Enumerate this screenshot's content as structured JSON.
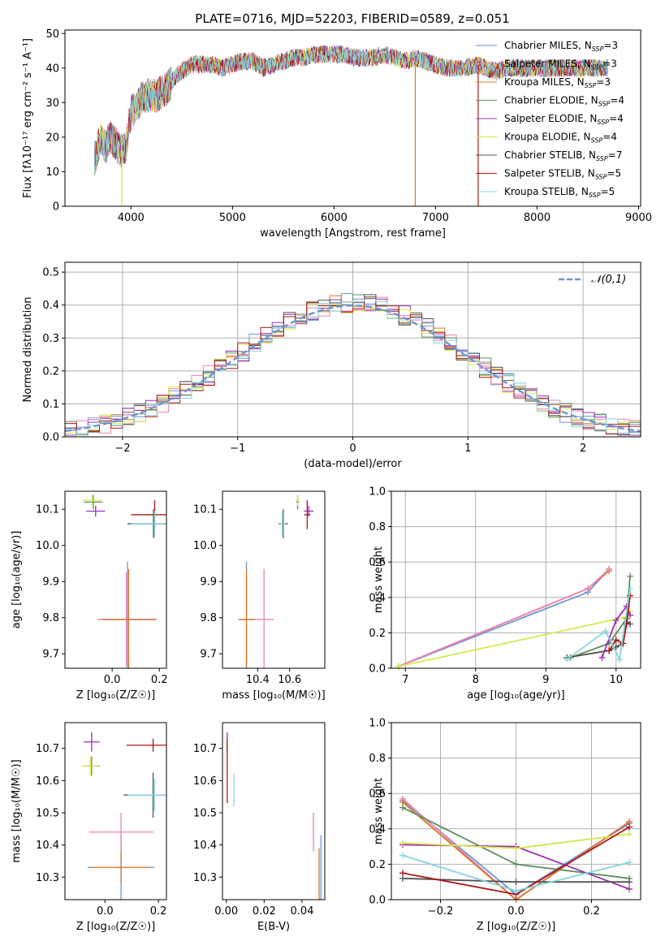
{
  "colors": {
    "chabrier_miles": "#6f93d6",
    "salpeter_miles": "#e884b4",
    "kroupa_miles": "#d9772d",
    "chabrier_elodie": "#5e8c5a",
    "salpeter_elodie": "#9a2fb0",
    "kroupa_elodie": "#d4e84f",
    "chabrier_stelib": "#545454",
    "salpeter_stelib": "#aa1a1a",
    "kroupa_stelib": "#85d3de",
    "normal": "#6f93d6"
  },
  "chart_data": [
    {
      "id": "spectrum",
      "type": "line",
      "title": "PLATE=0716, MJD=52203, FIBERID=0589, z=0.051",
      "xlabel": "wavelength [Angstrom, rest frame]",
      "ylabel": "Flux [fλ10⁻¹⁷ erg cm⁻² s⁻¹ A⁻¹]",
      "xlim": [
        3350,
        9020
      ],
      "ylim": [
        0,
        51
      ],
      "xticks": [
        "4000",
        "5000",
        "6000",
        "7000",
        "8000",
        "9000"
      ],
      "yticks": [
        "0",
        "10",
        "20",
        "30",
        "40",
        "50"
      ],
      "legend_position": "top-right",
      "series": [
        {
          "name": "Chabrier MILES, N_SSP=3"
        },
        {
          "name": "Salpeter MILES, N_SSP=3"
        },
        {
          "name": "Kroupa MILES, N_SSP=3"
        },
        {
          "name": "Chabrier ELODIE, N_SSP=4"
        },
        {
          "name": "Salpeter ELODIE, N_SSP=4"
        },
        {
          "name": "Kroupa ELODIE, N_SSP=4"
        },
        {
          "name": "Chabrier STELIB, N_SSP=7"
        },
        {
          "name": "Salpeter STELIB, N_SSP=5"
        },
        {
          "name": "Kroupa STELIB, N_SSP=5"
        }
      ],
      "spectrum_envelope": {
        "wavelength": [
          3650,
          3700,
          3750,
          3800,
          3850,
          3900,
          3950,
          4000,
          4050,
          4100,
          4150,
          4200,
          4250,
          4300,
          4350,
          4400,
          4450,
          4500,
          4600,
          4700,
          4800,
          4900,
          5000,
          5100,
          5200,
          5300,
          5400,
          5500,
          5600,
          5700,
          5800,
          5900,
          6000,
          6100,
          6200,
          6300,
          6400,
          6500,
          6600,
          6700,
          6800,
          6900,
          7000,
          7100,
          7200,
          7300,
          7400,
          7500,
          7600,
          7700,
          7800,
          7900,
          8000,
          8100,
          8200,
          8300,
          8400,
          8500,
          8600,
          8700
        ],
        "flux": [
          14,
          20,
          17,
          20,
          18,
          16,
          17,
          27,
          29,
          31,
          32,
          32,
          32,
          33,
          34,
          36,
          38,
          39,
          41,
          41,
          41,
          40,
          41,
          42,
          42,
          40,
          41,
          42,
          43,
          43,
          44,
          44,
          44,
          44,
          43,
          43,
          43,
          44,
          43,
          42,
          43,
          42,
          41,
          40,
          40,
          40,
          41,
          40,
          39,
          40,
          40,
          40,
          40,
          40,
          40,
          40,
          40,
          40,
          40,
          40
        ]
      },
      "dips": [
        {
          "wavelength": 3910,
          "flux": 0,
          "series": "Kroupa ELODIE, N_SSP=4"
        },
        {
          "wavelength": 6800,
          "flux": 0,
          "series": "Kroupa MILES, N_SSP=3"
        },
        {
          "wavelength": 7420,
          "flux": 0,
          "series": "Salpeter STELIB, N_SSP=5"
        }
      ]
    },
    {
      "id": "residuals",
      "type": "histogram",
      "xlabel": "(data-model)/error",
      "ylabel": "Normed distribution",
      "xlim": [
        -2.5,
        2.5
      ],
      "ylim": [
        0,
        0.53
      ],
      "grid": true,
      "xticks": [
        "−2",
        "−1",
        "0",
        "1",
        "2"
      ],
      "yticks": [
        "0.0",
        "0.1",
        "0.2",
        "0.3",
        "0.4",
        "0.5"
      ],
      "bin_width": 0.1,
      "reference_curve": {
        "name": "𝒩(0,1)",
        "style": "dashed",
        "mean": 0,
        "sigma": 1
      },
      "legend_position": "top-right"
    },
    {
      "id": "age_vs_Z",
      "type": "errorbar",
      "xlabel": "Z [log₁₀(Z/Z☉)]",
      "ylabel": "age  [log₁₀(age/yr)]",
      "xlim": [
        -0.2,
        0.23
      ],
      "ylim": [
        9.66,
        10.15
      ],
      "xticks": [
        {
          "v": 0.0,
          "t": "0.0"
        },
        {
          "v": 0.2,
          "t": "0.2"
        }
      ],
      "yticks": [
        {
          "v": 9.7,
          "t": "9.7"
        },
        {
          "v": 9.8,
          "t": "9.8"
        },
        {
          "v": 9.9,
          "t": "9.9"
        },
        {
          "v": 10.0,
          "t": "10.0"
        },
        {
          "v": 10.1,
          "t": "10.1"
        }
      ],
      "points": [
        {
          "series": "chabrier_miles",
          "x": 0.065,
          "xerr": 0.125,
          "y": 9.795,
          "yerr": 0.16
        },
        {
          "series": "salpeter_miles",
          "x": 0.06,
          "xerr": 0.12,
          "y": 9.795,
          "yerr": 0.13
        },
        {
          "series": "kroupa_miles",
          "x": 0.07,
          "xerr": 0.115,
          "y": 9.795,
          "yerr": 0.14
        },
        {
          "series": "chabrier_elodie",
          "x": -0.08,
          "xerr": 0.04,
          "y": 10.12,
          "yerr": 0.02
        },
        {
          "series": "salpeter_elodie",
          "x": -0.07,
          "xerr": 0.04,
          "y": 10.095,
          "yerr": 0.015
        },
        {
          "series": "kroupa_elodie",
          "x": -0.085,
          "xerr": 0.04,
          "y": 10.125,
          "yerr": 0.015
        },
        {
          "series": "chabrier_stelib",
          "x": 0.175,
          "xerr": 0.11,
          "y": 10.06,
          "yerr": 0.04
        },
        {
          "series": "salpeter_stelib",
          "x": 0.18,
          "xerr": 0.1,
          "y": 10.085,
          "yerr": 0.04
        },
        {
          "series": "kroupa_stelib",
          "x": 0.18,
          "xerr": 0.1,
          "y": 10.06,
          "yerr": 0.035
        }
      ]
    },
    {
      "id": "age_vs_mass",
      "type": "errorbar",
      "xlabel": "mass [log₁₀(M/M☉)]",
      "ylabel": "",
      "xlim": [
        10.18,
        10.82
      ],
      "ylim": [
        9.66,
        10.15
      ],
      "xticks": [
        {
          "v": 10.4,
          "t": "10.4"
        },
        {
          "v": 10.6,
          "t": "10.6"
        }
      ],
      "yticks": [
        {
          "v": 9.7,
          "t": "9.7"
        },
        {
          "v": 9.8,
          "t": "9.8"
        },
        {
          "v": 9.9,
          "t": "9.9"
        },
        {
          "v": 10.0,
          "t": "10.0"
        },
        {
          "v": 10.1,
          "t": "10.1"
        }
      ],
      "points": [
        {
          "series": "chabrier_miles",
          "x": 10.33,
          "xerr": 0.05,
          "y": 9.795,
          "yerr": 0.16
        },
        {
          "series": "salpeter_miles",
          "x": 10.44,
          "xerr": 0.06,
          "y": 9.795,
          "yerr": 0.14
        },
        {
          "series": "kroupa_miles",
          "x": 10.33,
          "xerr": 0.05,
          "y": 9.795,
          "yerr": 0.14
        },
        {
          "series": "chabrier_elodie",
          "x": 10.65,
          "xerr": 0.01,
          "y": 10.12,
          "yerr": 0.02
        },
        {
          "series": "salpeter_elodie",
          "x": 10.72,
          "xerr": 0.03,
          "y": 10.095,
          "yerr": 0.015
        },
        {
          "series": "kroupa_elodie",
          "x": 10.65,
          "xerr": 0.01,
          "y": 10.125,
          "yerr": 0.015
        },
        {
          "series": "chabrier_stelib",
          "x": 10.56,
          "xerr": 0.03,
          "y": 10.06,
          "yerr": 0.04
        },
        {
          "series": "salpeter_stelib",
          "x": 10.71,
          "xerr": 0.02,
          "y": 10.085,
          "yerr": 0.04
        },
        {
          "series": "kroupa_stelib",
          "x": 10.555,
          "xerr": 0.02,
          "y": 10.06,
          "yerr": 0.035
        }
      ]
    },
    {
      "id": "massweight_vs_age",
      "type": "line",
      "xlabel": "age  [log₁₀(age/yr)]",
      "ylabel": "mass weight",
      "xlim": [
        6.8,
        10.35
      ],
      "ylim": [
        0,
        1
      ],
      "grid": true,
      "xticks": [
        {
          "v": 7,
          "t": "7"
        },
        {
          "v": 8,
          "t": "8"
        },
        {
          "v": 9,
          "t": "9"
        },
        {
          "v": 10,
          "t": "10"
        }
      ],
      "yticks": [
        {
          "v": 0,
          "t": "0.0"
        },
        {
          "v": 0.2,
          "t": "0.2"
        },
        {
          "v": 0.4,
          "t": "0.4"
        },
        {
          "v": 0.6,
          "t": "0.6"
        },
        {
          "v": 0.8,
          "t": "0.8"
        },
        {
          "v": 1.0,
          "t": "1.0"
        }
      ],
      "series": [
        {
          "key": "chabrier_miles",
          "x": [
            6.9,
            9.6,
            9.9
          ],
          "y": [
            0.01,
            0.43,
            0.56
          ]
        },
        {
          "key": "kroupa_miles",
          "x": [
            6.9,
            9.6,
            9.9
          ],
          "y": [
            0.01,
            0.45,
            0.55
          ]
        },
        {
          "key": "salpeter_miles",
          "x": [
            6.9,
            9.6,
            9.9
          ],
          "y": [
            0.01,
            0.45,
            0.56
          ]
        },
        {
          "key": "kroupa_elodie",
          "x": [
            6.9,
            10.15,
            10.2
          ],
          "y": [
            0.01,
            0.29,
            0.32
          ]
        },
        {
          "key": "chabrier_elodie",
          "x": [
            9.35,
            9.9,
            10.15,
            10.2
          ],
          "y": [
            0.06,
            0.14,
            0.28,
            0.52
          ]
        },
        {
          "key": "salpeter_elodie",
          "x": [
            9.8,
            10.0,
            10.15,
            10.2
          ],
          "y": [
            0.06,
            0.27,
            0.35,
            0.3
          ]
        },
        {
          "key": "chabrier_stelib",
          "x": [
            9.3,
            9.9,
            10.0,
            10.1,
            10.15,
            10.2
          ],
          "y": [
            0.06,
            0.1,
            0.12,
            0.14,
            0.26,
            0.25
          ]
        },
        {
          "key": "salpeter_stelib",
          "x": [
            9.9,
            10.0,
            10.1,
            10.15,
            10.2
          ],
          "y": [
            0.1,
            0.16,
            0.14,
            0.25,
            0.41
          ]
        },
        {
          "key": "kroupa_stelib",
          "x": [
            9.3,
            9.85,
            10.05,
            10.2
          ],
          "y": [
            0.05,
            0.21,
            0.05,
            0.45
          ]
        }
      ]
    },
    {
      "id": "mass_vs_Z",
      "type": "errorbar",
      "xlabel": "Z [log₁₀(Z/Z☉)]",
      "ylabel": "mass [log₁₀(M/M☉)]",
      "xlim": [
        -0.15,
        0.23
      ],
      "ylim": [
        10.23,
        10.78
      ],
      "xticks": [
        {
          "v": 0.0,
          "t": "0.0"
        },
        {
          "v": 0.2,
          "t": "0.2"
        }
      ],
      "yticks": [
        {
          "v": 10.3,
          "t": "10.3"
        },
        {
          "v": 10.4,
          "t": "10.4"
        },
        {
          "v": 10.5,
          "t": "10.5"
        },
        {
          "v": 10.6,
          "t": "10.6"
        },
        {
          "v": 10.7,
          "t": "10.7"
        }
      ],
      "points": [
        {
          "series": "chabrier_miles",
          "x": 0.06,
          "xerr": 0.125,
          "y": 10.33,
          "yerr": 0.1
        },
        {
          "series": "salpeter_miles",
          "x": 0.06,
          "xerr": 0.12,
          "y": 10.44,
          "yerr": 0.06
        },
        {
          "series": "kroupa_miles",
          "x": 0.06,
          "xerr": 0.11,
          "y": 10.33,
          "yerr": 0.05
        },
        {
          "series": "chabrier_elodie",
          "x": -0.05,
          "xerr": 0.03,
          "y": 10.645,
          "yerr": 0.03
        },
        {
          "series": "salpeter_elodie",
          "x": -0.05,
          "xerr": 0.03,
          "y": 10.72,
          "yerr": 0.03
        },
        {
          "series": "kroupa_elodie",
          "x": -0.055,
          "xerr": 0.03,
          "y": 10.645,
          "yerr": 0.03
        },
        {
          "series": "chabrier_stelib",
          "x": 0.18,
          "xerr": 0.11,
          "y": 10.555,
          "yerr": 0.07
        },
        {
          "series": "salpeter_stelib",
          "x": 0.18,
          "xerr": 0.1,
          "y": 10.71,
          "yerr": 0.02
        },
        {
          "series": "kroupa_stelib",
          "x": 0.185,
          "xerr": 0.1,
          "y": 10.555,
          "yerr": 0.05
        }
      ]
    },
    {
      "id": "mass_vs_ebv",
      "type": "errorbar",
      "xlabel": "E(B-V)",
      "ylabel": "",
      "xlim": [
        -0.002,
        0.052
      ],
      "ylim": [
        10.23,
        10.78
      ],
      "xticks": [
        {
          "v": 0.0,
          "t": "0.00"
        },
        {
          "v": 0.02,
          "t": "0.02"
        },
        {
          "v": 0.04,
          "t": "0.04"
        }
      ],
      "yticks": [
        {
          "v": 10.3,
          "t": "10.3"
        },
        {
          "v": 10.4,
          "t": "10.4"
        },
        {
          "v": 10.5,
          "t": "10.5"
        },
        {
          "v": 10.6,
          "t": "10.6"
        },
        {
          "v": 10.7,
          "t": "10.7"
        }
      ],
      "points": [
        {
          "series": "chabrier_miles",
          "x": 0.05,
          "xerr": 0,
          "y": 10.33,
          "yerr": 0.1
        },
        {
          "series": "salpeter_miles",
          "x": 0.046,
          "xerr": 0,
          "y": 10.44,
          "yerr": 0.06
        },
        {
          "series": "kroupa_miles",
          "x": 0.049,
          "xerr": 0,
          "y": 10.3,
          "yerr": 0.09
        },
        {
          "series": "salpeter_elodie",
          "x": 0.0005,
          "xerr": 0,
          "y": 10.72,
          "yerr": 0.03
        },
        {
          "series": "salpeter_stelib",
          "x": 0.0005,
          "xerr": 0,
          "y": 10.63,
          "yerr": 0.1
        },
        {
          "series": "kroupa_stelib",
          "x": 0.004,
          "xerr": 0,
          "y": 10.57,
          "yerr": 0.05
        }
      ]
    },
    {
      "id": "massweight_vs_Z",
      "type": "line",
      "xlabel": "Z [log₁₀(Z/Z☉)]",
      "ylabel": "mass weight",
      "xlim": [
        -0.33,
        0.33
      ],
      "ylim": [
        0,
        1
      ],
      "grid": true,
      "xticks": [
        {
          "v": -0.2,
          "t": "−0.2"
        },
        {
          "v": 0.0,
          "t": "0.0"
        },
        {
          "v": 0.2,
          "t": "0.2"
        }
      ],
      "yticks": [
        {
          "v": 0,
          "t": "0.0"
        },
        {
          "v": 0.2,
          "t": "0.2"
        },
        {
          "v": 0.4,
          "t": "0.4"
        },
        {
          "v": 0.6,
          "t": "0.6"
        },
        {
          "v": 0.8,
          "t": "0.8"
        },
        {
          "v": 1.0,
          "t": "1.0"
        }
      ],
      "series": [
        {
          "key": "chabrier_miles",
          "x": [
            -0.3,
            0.0,
            0.3
          ],
          "y": [
            0.56,
            0.03,
            0.43
          ]
        },
        {
          "key": "salpeter_miles",
          "x": [
            -0.3,
            0.0,
            0.3
          ],
          "y": [
            0.57,
            0.0,
            0.44
          ]
        },
        {
          "key": "kroupa_miles",
          "x": [
            -0.3,
            0.0,
            0.3
          ],
          "y": [
            0.55,
            0.0,
            0.44
          ]
        },
        {
          "key": "chabrier_elodie",
          "x": [
            -0.3,
            0.0,
            0.3
          ],
          "y": [
            0.52,
            0.2,
            0.12
          ]
        },
        {
          "key": "salpeter_elodie",
          "x": [
            -0.3,
            0.0,
            0.3
          ],
          "y": [
            0.31,
            0.3,
            0.06
          ]
        },
        {
          "key": "kroupa_elodie",
          "x": [
            -0.3,
            0.0,
            0.3
          ],
          "y": [
            0.32,
            0.29,
            0.37
          ]
        },
        {
          "key": "chabrier_stelib",
          "x": [
            -0.3,
            0.0,
            0.3
          ],
          "y": [
            0.12,
            0.1,
            0.1
          ]
        },
        {
          "key": "salpeter_stelib",
          "x": [
            -0.3,
            0.0,
            0.3
          ],
          "y": [
            0.15,
            0.03,
            0.41
          ]
        },
        {
          "key": "kroupa_stelib",
          "x": [
            -0.3,
            0.0,
            0.3
          ],
          "y": [
            0.25,
            0.05,
            0.21
          ]
        }
      ]
    }
  ]
}
